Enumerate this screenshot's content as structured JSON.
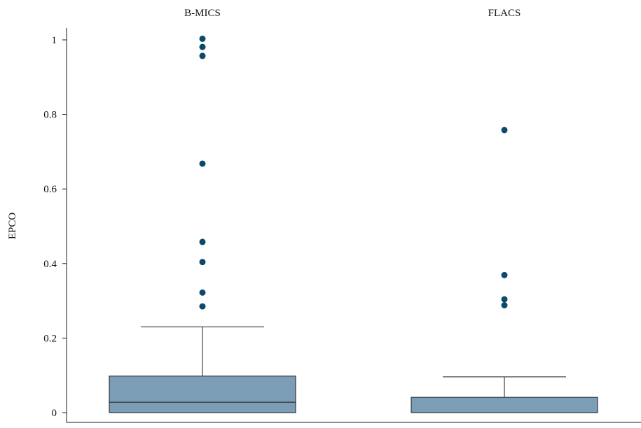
{
  "chart_data": {
    "type": "box",
    "ylabel": "EPCO",
    "ylim": [
      0,
      1
    ],
    "y_ticks": [
      {
        "value": 0,
        "label": "0"
      },
      {
        "value": 0.2,
        "label": "0.2"
      },
      {
        "value": 0.4,
        "label": "0.4"
      },
      {
        "value": 0.6,
        "label": "0.6"
      },
      {
        "value": 0.8,
        "label": "0.8"
      },
      {
        "value": 1,
        "label": "1"
      }
    ],
    "grid": false,
    "colors": {
      "box_fill": "#7b9db6",
      "outlier": "#0b4a6b",
      "line": "#1a1a1a"
    },
    "categories": [
      {
        "name": "B-MICS",
        "whisker_low": 0,
        "q1": 0,
        "median": 0.028,
        "q3": 0.098,
        "whisker_high": 0.23,
        "outliers": [
          1.003,
          0.981,
          0.957,
          0.668,
          0.458,
          0.404,
          0.322,
          0.285
        ]
      },
      {
        "name": "FLACS",
        "whisker_low": 0,
        "q1": 0,
        "median": 0,
        "q3": 0.041,
        "whisker_high": 0.096,
        "outliers": [
          0.758,
          0.369,
          0.304,
          0.288
        ]
      }
    ]
  }
}
